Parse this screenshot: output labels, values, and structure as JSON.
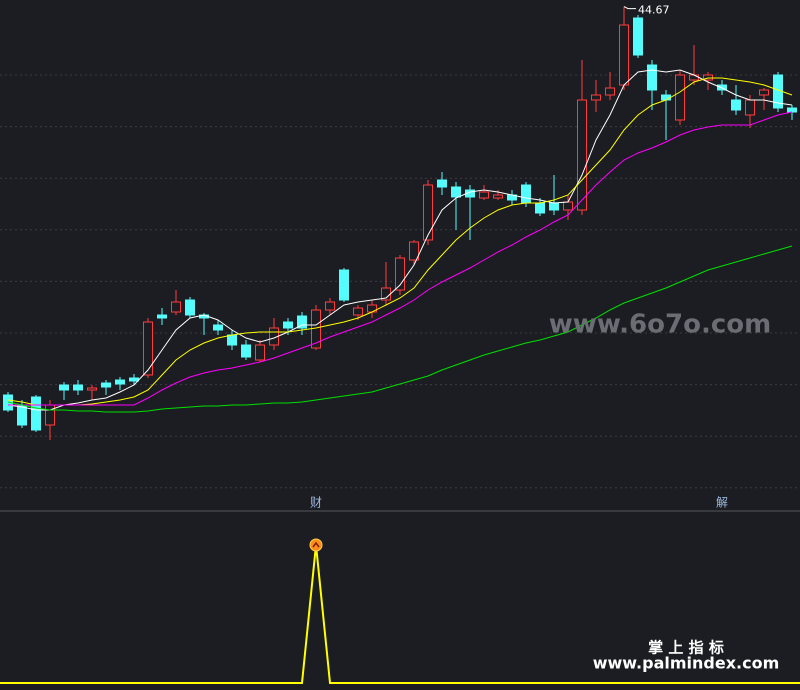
{
  "chart_data": [
    {
      "type": "candlestick",
      "ylim": [
        20.5,
        45
      ],
      "up_color": "#ff3c3c",
      "down_color": "#54fcfc",
      "open": [
        25.25,
        24.75,
        25.15,
        23.75,
        25.75,
        25.75,
        25.5,
        25.85,
        26,
        26.1,
        26.25,
        29.25,
        29.4,
        30,
        29.25,
        28.75,
        28.25,
        27.75,
        27,
        27.75,
        28.9,
        29.2,
        27.6,
        29.5,
        31.5,
        29.25,
        29.4,
        30,
        30.5,
        32,
        33,
        36,
        35.65,
        35.5,
        35.1,
        35.1,
        35.25,
        35.75,
        34.85,
        34.85,
        34.5,
        34.5,
        40,
        40.25,
        40.75,
        44.1,
        41.75,
        40.25,
        39,
        41,
        41,
        40.75,
        40,
        39.25,
        40.25,
        41.25,
        39.6
      ],
      "close": [
        24.5,
        23.75,
        23.5,
        24.75,
        25.5,
        25.5,
        25.6,
        25.65,
        25.8,
        25.95,
        28.9,
        29.1,
        29.9,
        29.25,
        29.1,
        28.5,
        27.75,
        27.15,
        27.75,
        28.6,
        28.6,
        28.6,
        29.5,
        29.9,
        30,
        29.6,
        29.75,
        30.6,
        32.1,
        32.9,
        35.75,
        35.65,
        35.15,
        35.15,
        35.4,
        35.25,
        35,
        34.85,
        34.35,
        34.5,
        34.9,
        40,
        40.25,
        40.6,
        43.75,
        42.25,
        40.5,
        40,
        41.25,
        41.25,
        41.25,
        40.5,
        39.5,
        40,
        40.5,
        39.6,
        39.4
      ],
      "high": [
        25.4,
        25,
        25.25,
        25,
        25.9,
        26,
        25.75,
        26,
        26.15,
        26.3,
        29.1,
        29.6,
        30.5,
        30.15,
        29.35,
        29,
        28.5,
        28,
        28,
        29.1,
        29.1,
        29.4,
        29.75,
        30.1,
        31.6,
        29.75,
        30,
        31.9,
        32.25,
        33,
        36,
        36.4,
        35.9,
        35.75,
        35.75,
        35.5,
        35.5,
        35.9,
        35.1,
        36.25,
        35.25,
        42,
        41,
        41.4,
        44.67,
        44.25,
        42,
        40.5,
        41.5,
        42.75,
        41.4,
        41,
        40.75,
        40.25,
        40.6,
        41.4,
        39.75
      ],
      "low": [
        24.4,
        23.6,
        23.4,
        23,
        25,
        25.25,
        25,
        25.25,
        25.5,
        25.75,
        26.1,
        28.75,
        29.25,
        29.1,
        28.25,
        28.25,
        27.5,
        27,
        26.9,
        27.5,
        28.25,
        28.25,
        27.5,
        29.25,
        29.9,
        29,
        29.1,
        29.75,
        30.25,
        31.75,
        32.75,
        35.25,
        33.5,
        33,
        35,
        35,
        34.75,
        34.65,
        34.2,
        34.25,
        34,
        34.25,
        39.4,
        40,
        40.5,
        42.1,
        39.5,
        38,
        38.75,
        40.75,
        40.5,
        40.25,
        39.25,
        38.6,
        39.5,
        39.4,
        39
      ],
      "annotation_label": "44.67",
      "series": [
        {
          "color": "#ffffff",
          "values": [
            24.75,
            24.65,
            24.5,
            24.5,
            24.75,
            24.85,
            25,
            25.1,
            25.4,
            25.75,
            26.5,
            27.5,
            28.5,
            29.1,
            29.25,
            29,
            28.5,
            28.1,
            27.9,
            28.1,
            28.4,
            28.75,
            28.75,
            29.25,
            29.75,
            29.9,
            30,
            30.1,
            30.75,
            31.75,
            33.25,
            34.5,
            35.1,
            35.4,
            35.5,
            35.4,
            35.25,
            35.1,
            35,
            34.85,
            34.9,
            36.25,
            38,
            39.25,
            40.75,
            41.4,
            41.5,
            41.4,
            41.5,
            41.25,
            40.9,
            40.6,
            40.25,
            40,
            40,
            39.85,
            39.75
          ]
        },
        {
          "color": "#ffff00",
          "values": [
            25,
            24.9,
            24.75,
            24.75,
            24.75,
            24.75,
            24.8,
            24.9,
            25,
            25.15,
            25.5,
            26.25,
            27,
            27.5,
            27.85,
            28.1,
            28.25,
            28.35,
            28.4,
            28.4,
            28.4,
            28.5,
            28.6,
            28.75,
            28.9,
            29.1,
            29.4,
            29.75,
            30.1,
            30.6,
            31.5,
            32.25,
            33,
            33.6,
            34.1,
            34.5,
            34.75,
            34.85,
            34.85,
            35,
            35.25,
            36,
            36.75,
            37.5,
            38.5,
            39.25,
            39.75,
            40,
            40.4,
            40.9,
            41.1,
            41.1,
            41,
            40.9,
            40.75,
            40.5,
            40.25
          ]
        },
        {
          "color": "#ff00ff",
          "values": [
            24.75,
            24.75,
            24.75,
            24.75,
            24.75,
            24.75,
            24.75,
            24.75,
            24.75,
            24.75,
            25.1,
            25.5,
            25.85,
            26.15,
            26.35,
            26.5,
            26.6,
            26.75,
            26.9,
            27.1,
            27.35,
            27.6,
            27.85,
            28.15,
            28.4,
            28.65,
            28.9,
            29.25,
            29.6,
            30,
            30.5,
            30.9,
            31.25,
            31.6,
            32,
            32.4,
            32.75,
            33.15,
            33.5,
            33.9,
            34.25,
            35,
            35.75,
            36.4,
            37,
            37.35,
            37.6,
            37.9,
            38.25,
            38.5,
            38.65,
            38.75,
            38.75,
            38.75,
            39,
            39.25,
            39.4
          ]
        },
        {
          "color": "#00e000",
          "values": [
            24.9,
            24.75,
            24.6,
            24.5,
            24.5,
            24.45,
            24.45,
            24.4,
            24.4,
            24.4,
            24.45,
            24.55,
            24.6,
            24.65,
            24.7,
            24.7,
            24.75,
            24.75,
            24.8,
            24.85,
            24.85,
            24.9,
            25,
            25.1,
            25.2,
            25.3,
            25.4,
            25.6,
            25.8,
            26,
            26.2,
            26.5,
            26.75,
            27,
            27.25,
            27.45,
            27.65,
            27.85,
            28,
            28.2,
            28.4,
            28.75,
            29.1,
            29.5,
            29.85,
            30.1,
            30.35,
            30.6,
            30.9,
            31.2,
            31.5,
            31.7,
            31.9,
            32.1,
            32.3,
            32.5,
            32.7
          ]
        }
      ],
      "event_labels": [
        {
          "index": 22,
          "label": "财"
        },
        {
          "index": 51,
          "label": "解"
        }
      ]
    },
    {
      "type": "line",
      "ylim": [
        0,
        1
      ],
      "color": "#ffff00",
      "values": [
        0,
        0,
        0,
        0,
        0,
        0,
        0,
        0,
        0,
        0,
        0,
        0,
        0,
        0,
        0,
        0,
        0,
        0,
        0,
        0,
        0,
        0,
        1,
        0,
        0,
        0,
        0,
        0,
        0,
        0,
        0,
        0,
        0,
        0,
        0,
        0,
        0,
        0,
        0,
        0,
        0,
        0,
        0,
        0,
        0,
        0,
        0,
        0,
        0,
        0,
        0,
        0,
        0,
        0,
        0,
        0,
        0
      ]
    }
  ],
  "watermarks": {
    "site": "www.6o7o.com",
    "brand": "掌 上 指 标",
    "url": "www.palmindex.com"
  }
}
